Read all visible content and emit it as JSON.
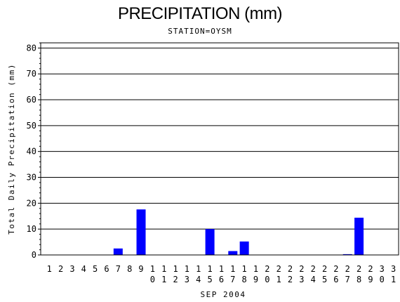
{
  "chart_data": {
    "type": "bar",
    "title": "PRECIPITATION (mm)",
    "subtitle": "STATION=OYSM",
    "xlabel": "SEP 2004",
    "ylabel": "Total Daily Precipitation (mm)",
    "ylim": [
      0,
      82
    ],
    "yticks": [
      0,
      10,
      20,
      30,
      40,
      50,
      60,
      70,
      80
    ],
    "grid": true,
    "bar_color": "#0000ff",
    "categories": [
      "1",
      "2",
      "3",
      "4",
      "5",
      "6",
      "7",
      "8",
      "9",
      "10",
      "11",
      "12",
      "13",
      "14",
      "15",
      "16",
      "17",
      "18",
      "19",
      "20",
      "21",
      "22",
      "23",
      "24",
      "25",
      "26",
      "27",
      "28",
      "29",
      "30",
      "31"
    ],
    "values": [
      0,
      0,
      0,
      0,
      0,
      0,
      2.5,
      0,
      17.6,
      0,
      0,
      0,
      0,
      0,
      10.0,
      0,
      1.5,
      5.2,
      0,
      0,
      0,
      0,
      0,
      0,
      0,
      0,
      0.3,
      14.4,
      0,
      0,
      0
    ]
  }
}
